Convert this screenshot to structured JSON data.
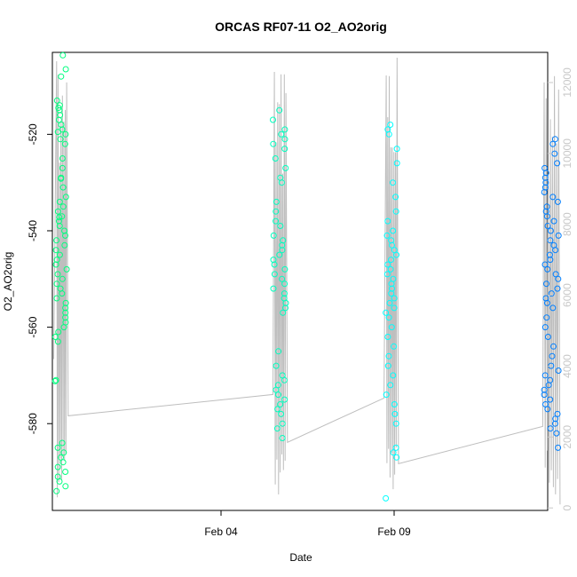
{
  "chart_data": {
    "type": "scatter",
    "title": "ORCAS RF07-11 O2_AO2orig",
    "xlabel": "Date",
    "ylabel": "O2_AO2orig",
    "x_ticks": [
      "Feb 04",
      "Feb 09"
    ],
    "y_ticks": [
      -520,
      -540,
      -560,
      -580
    ],
    "y_right_ticks": [
      0,
      2000,
      4000,
      6000,
      8000,
      10000,
      12000
    ],
    "ylim": [
      -598,
      -503
    ],
    "y_right_lim": [
      -70,
      12850
    ],
    "grid": false,
    "series": [
      {
        "color": "#00ff7f",
        "marker": "open-circle",
        "x_range": [
          "2016-01-30T05:00",
          "2016-01-30T13:00"
        ],
        "y_values": [
          -503.6,
          -506.5,
          -508,
          -513,
          -514,
          -514.5,
          -515,
          -516,
          -517,
          -518,
          -519,
          -519.5,
          -520,
          -521,
          -522,
          -525,
          -527,
          -529,
          -529.2,
          -531,
          -533,
          -534,
          -535,
          -536,
          -537,
          -537.2,
          -538,
          -539,
          -540,
          -541,
          -542,
          -543,
          -544,
          -545,
          -546,
          -547,
          -548,
          -549,
          -550,
          -551,
          -552,
          -553,
          -554,
          -555,
          -556,
          -557,
          -558,
          -559,
          -560,
          -561,
          -562,
          -563,
          -571,
          -571.2,
          -584,
          -585,
          -586,
          -587,
          -588,
          -589,
          -590,
          -591,
          -592,
          -593,
          -594
        ]
      },
      {
        "color": "#00ffbf",
        "marker": "open-circle",
        "x_range": [
          "2016-02-05T12:00",
          "2016-02-05T21:00"
        ],
        "y_values": [
          -515,
          -517,
          -519,
          -520,
          -521,
          -522,
          -523,
          -525,
          -527,
          -529,
          -530,
          -534,
          -536,
          -538,
          -539,
          -541,
          -542,
          -543,
          -544,
          -545,
          -546,
          -547,
          -548,
          -549,
          -550,
          -551,
          -552,
          -553,
          -554,
          -555,
          -556,
          -557,
          -565,
          -568,
          -570,
          -571,
          -572,
          -573,
          -574,
          -575,
          -576,
          -577,
          -578,
          -580,
          -581,
          -583
        ]
      },
      {
        "color": "#00ffff",
        "marker": "open-circle",
        "x_range": [
          "2016-02-08T18:00",
          "2016-02-09T02:00"
        ],
        "y_values": [
          -518,
          -519,
          -520,
          -523,
          -526,
          -530,
          -533,
          -536,
          -538,
          -540,
          -541,
          -542,
          -543,
          -544,
          -545,
          -546,
          -547,
          -548,
          -549,
          -550,
          -551,
          -552,
          -553,
          -554,
          -555,
          -556,
          -557,
          -558,
          -560,
          -562,
          -564,
          -566,
          -568,
          -570,
          -572,
          -574,
          -576,
          -578,
          -580,
          -585,
          -586,
          -587,
          -595.5
        ]
      },
      {
        "color": "#007fff",
        "marker": "open-circle",
        "x_range": [
          "2016-02-13T08:00",
          "2016-02-13T18:00"
        ],
        "y_values": [
          -521,
          -522,
          -524,
          -526,
          -527,
          -528,
          -529,
          -530,
          -531,
          -532,
          -533,
          -534,
          -535,
          -536,
          -537,
          -538,
          -539,
          -540,
          -541,
          -542,
          -543,
          -544,
          -545,
          -546,
          -547,
          -548,
          -549,
          -550,
          -551,
          -552,
          -553,
          -554,
          -555,
          -556,
          -558,
          -560,
          -562,
          -564,
          -566,
          -568,
          -569,
          -570,
          -571,
          -572,
          -573,
          -574,
          -575,
          -576,
          -577,
          -578,
          -579,
          -580,
          -581,
          -582,
          -585
        ]
      }
    ],
    "altitude_line": {
      "color": "#bebebe",
      "axis": "right",
      "description_points": [
        {
          "x": "2016-01-30T04:00",
          "y": 4200
        },
        {
          "x": "2016-01-30T06:00",
          "y": 12600
        },
        {
          "x": "2016-01-30T13:00",
          "y": 12000
        },
        {
          "x": "2016-01-30T14:00",
          "y": 2600
        },
        {
          "x": "2016-02-05T12:00",
          "y": 3200
        },
        {
          "x": "2016-02-05T13:00",
          "y": 12300
        },
        {
          "x": "2016-02-05T21:00",
          "y": 11700
        },
        {
          "x": "2016-02-05T22:00",
          "y": 1850
        },
        {
          "x": "2016-02-08T17:00",
          "y": 3100
        },
        {
          "x": "2016-02-08T18:30",
          "y": 12200
        },
        {
          "x": "2016-02-09T02:00",
          "y": 12700
        },
        {
          "x": "2016-02-09T03:00",
          "y": 1250
        },
        {
          "x": "2016-02-13T07:00",
          "y": 2300
        },
        {
          "x": "2016-02-13T08:00",
          "y": 12000
        },
        {
          "x": "2016-02-13T18:00",
          "y": 11800
        },
        {
          "x": "2016-02-13T19:00",
          "y": 100
        }
      ]
    }
  }
}
